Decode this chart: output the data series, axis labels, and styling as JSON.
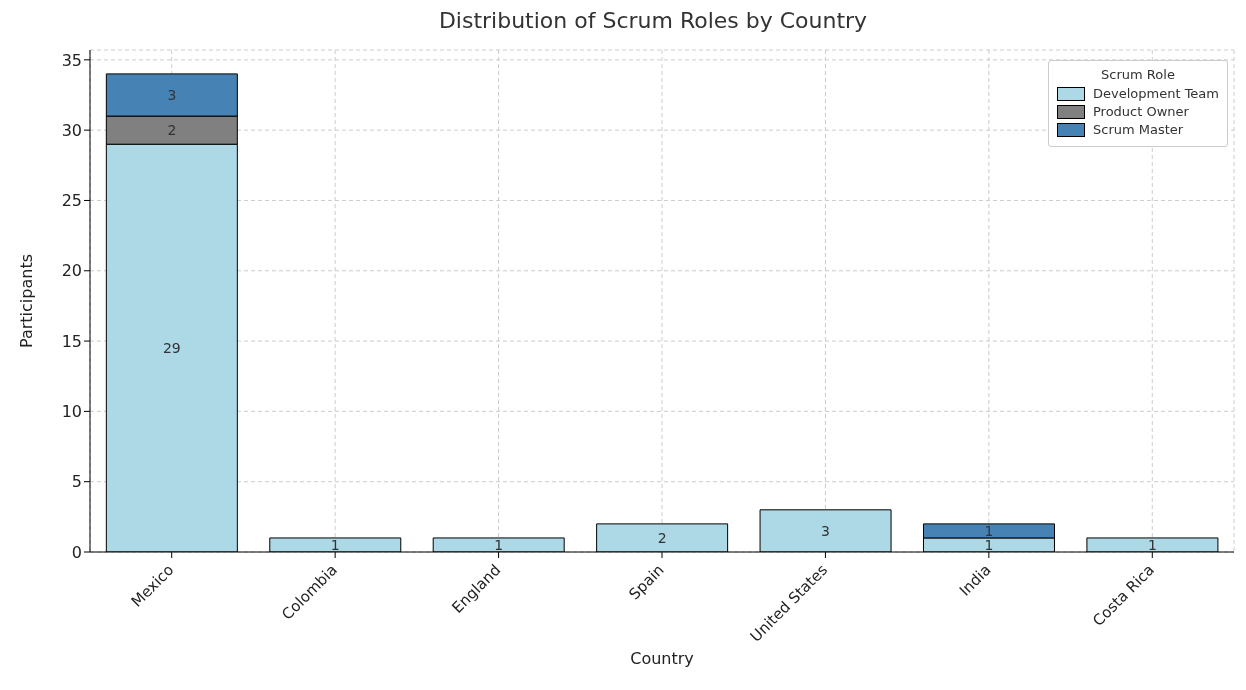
{
  "chart_data": {
    "type": "bar",
    "title": "Distribution of Scrum Roles by Country",
    "xlabel": "Country",
    "ylabel": "Participants",
    "legend_title": "Scrum Role",
    "categories": [
      "Mexico",
      "Colombia",
      "England",
      "Spain",
      "United States",
      "India",
      "Costa Rica"
    ],
    "series": [
      {
        "name": "Development Team",
        "color": "#add8e6",
        "values": [
          29,
          1,
          1,
          2,
          3,
          1,
          1
        ]
      },
      {
        "name": "Product Owner",
        "color": "#808080",
        "values": [
          2,
          null,
          null,
          null,
          null,
          null,
          null
        ]
      },
      {
        "name": "Scrum Master",
        "color": "#4682b4",
        "values": [
          3,
          null,
          null,
          null,
          null,
          1,
          null
        ]
      }
    ],
    "stacked": true,
    "data_labels": true,
    "ylim": [
      0,
      35.7
    ],
    "yticks": [
      0,
      5,
      10,
      15,
      20,
      25,
      30,
      35
    ],
    "grid": true,
    "legend": "top right"
  }
}
